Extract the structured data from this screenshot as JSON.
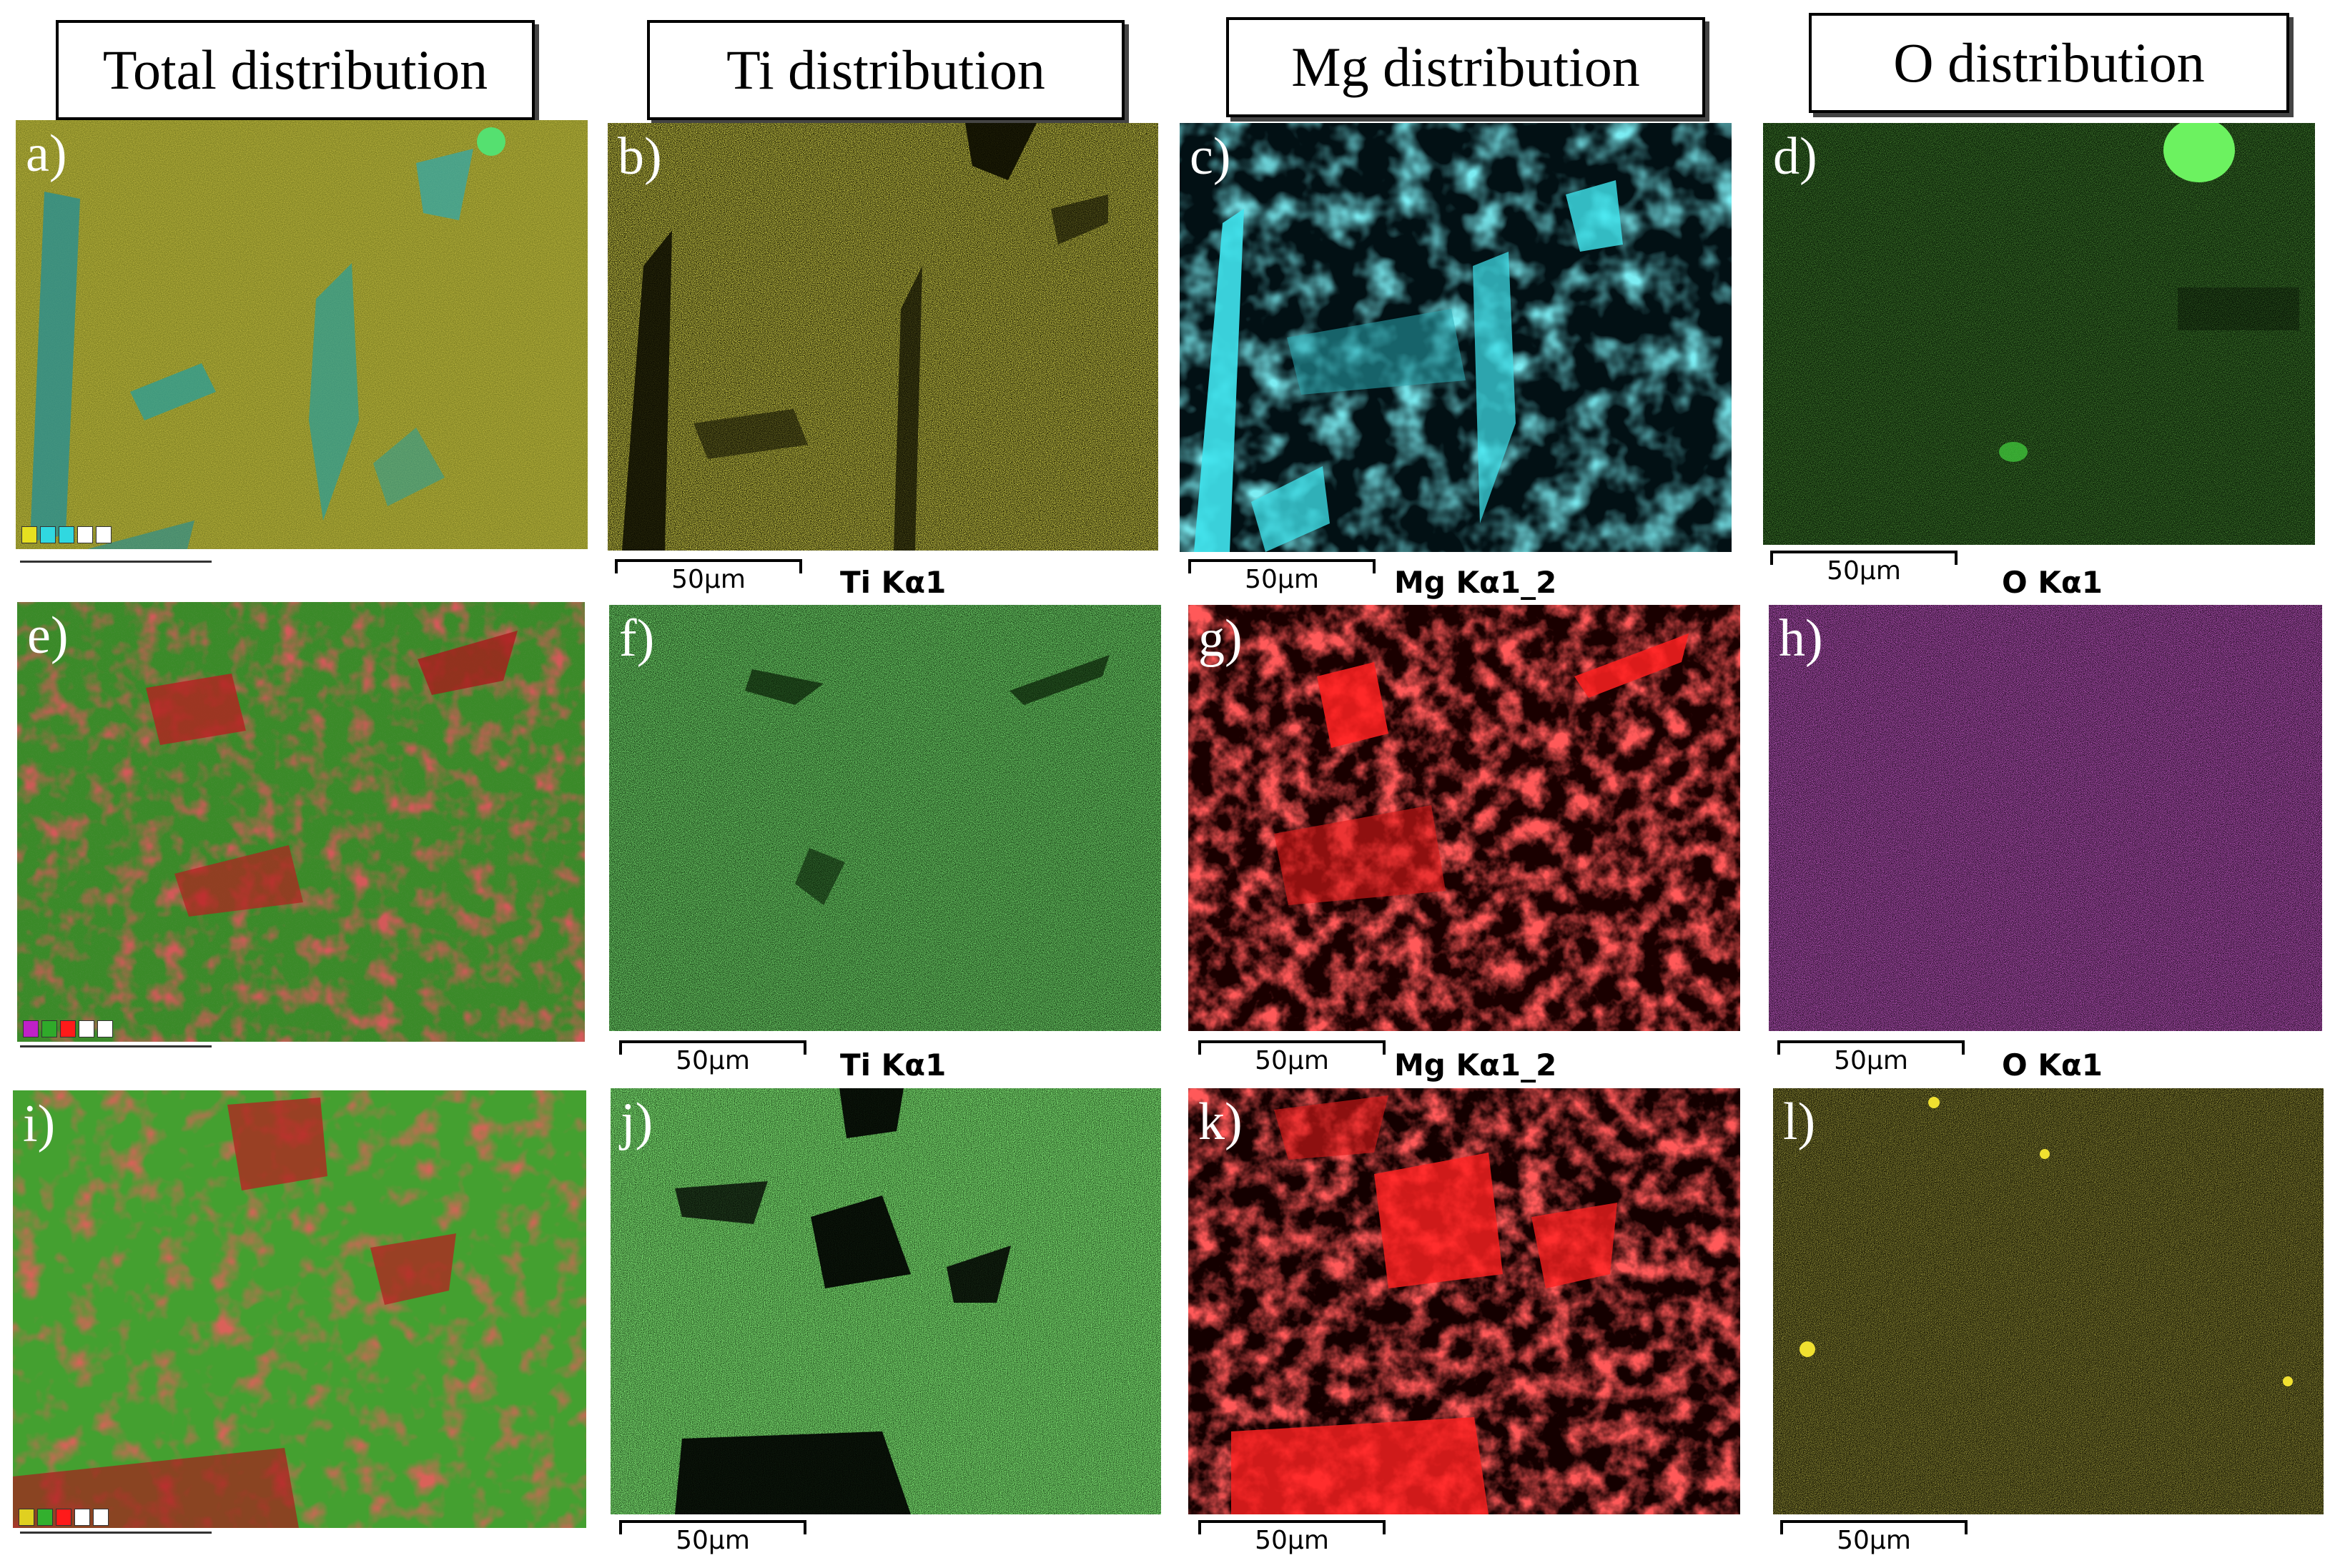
{
  "headers": {
    "total": "Total distribution",
    "ti": "Ti distribution",
    "mg": "Mg distribution",
    "o": "O distribution"
  },
  "panel_labels": {
    "a": "a)",
    "b": "b)",
    "c": "c)",
    "d": "d)",
    "e": "e)",
    "f": "f)",
    "g": "g)",
    "h": "h)",
    "i": "i)",
    "j": "j)",
    "k": "k)",
    "l": "l)"
  },
  "scale_bar": "50μm",
  "element_labels": {
    "ti": "Ti Kα1",
    "mg": "Mg Kα1_2",
    "o": "O Kα1"
  },
  "colors": {
    "row1_ti": "#e6e020",
    "row1_mg": "#30d8e0",
    "row1_o": "#2e9a1e",
    "row2_ti": "#2faa2a",
    "row2_mg": "#ff1a1a",
    "row2_o": "#c020c8",
    "row3_ti": "#33b02e",
    "row3_mg": "#ff1a1a",
    "row3_o": "#e0d020"
  }
}
